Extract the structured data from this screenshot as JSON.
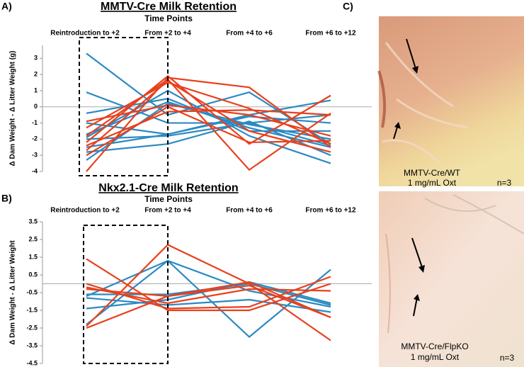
{
  "chart_data": [
    {
      "type": "line",
      "title": "MMTV-Cre Milk Retention",
      "subtitle": "Time Points",
      "categories": [
        "Reintroduction to +2",
        "From +2 to +4",
        "From +4 to +6",
        "From +6 to +12"
      ],
      "y_label": "Δ Dam Weight - Δ Litter Weight (g)",
      "ylim": [
        -4,
        3.8
      ],
      "yticks": [
        -4,
        -3,
        -2,
        -1,
        0,
        1,
        2,
        3
      ],
      "series": [
        {
          "color": "#2a8ac4",
          "values": [
            3.3,
            -0.5,
            0.9,
            -2.3
          ]
        },
        {
          "color": "#2a8ac4",
          "values": [
            0.9,
            -1.0,
            -1.0,
            -0.5
          ]
        },
        {
          "color": "#2a8ac4",
          "values": [
            -0.4,
            0.5,
            -1.5,
            -1.5
          ]
        },
        {
          "color": "#2a8ac4",
          "values": [
            -1.0,
            -1.7,
            -0.5,
            0.4
          ]
        },
        {
          "color": "#2a8ac4",
          "values": [
            -1.7,
            0.3,
            -1.3,
            -2.5
          ]
        },
        {
          "color": "#2a8ac4",
          "values": [
            -1.9,
            1.0,
            -1.8,
            -3.5
          ]
        },
        {
          "color": "#2a8ac4",
          "values": [
            -2.5,
            -1.7,
            -0.6,
            -1.0
          ]
        },
        {
          "color": "#2a8ac4",
          "values": [
            -2.8,
            -2.3,
            -0.9,
            -3.0
          ]
        },
        {
          "color": "#2a8ac4",
          "values": [
            -3.3,
            0.2,
            -1.1,
            -2.0
          ]
        },
        {
          "color": "#2a8ac4",
          "values": [
            -2.0,
            -1.8,
            -1.0,
            -2.4
          ]
        },
        {
          "color": "#e8401c",
          "values": [
            -4.0,
            1.8,
            1.2,
            -2.5
          ]
        },
        {
          "color": "#e8401c",
          "values": [
            -2.2,
            1.9,
            -2.3,
            0.7
          ]
        },
        {
          "color": "#e8401c",
          "values": [
            -1.3,
            1.5,
            -0.1,
            -2.3
          ]
        },
        {
          "color": "#e8401c",
          "values": [
            -2.4,
            -0.3,
            -0.2,
            -0.5
          ]
        },
        {
          "color": "#e8401c",
          "values": [
            -1.8,
            1.7,
            -3.9,
            -0.4
          ]
        },
        {
          "color": "#e8401c",
          "values": [
            -3.0,
            0.0,
            -2.2,
            -2.1
          ]
        },
        {
          "color": "#e8401c",
          "values": [
            -0.9,
            0.1,
            -0.5,
            -1.8
          ]
        },
        {
          "color": "#e8401c",
          "values": [
            -2.7,
            1.6,
            -1.5,
            -2.8
          ]
        }
      ]
    },
    {
      "type": "line",
      "title": "Nkx2.1-Cre Milk Retention",
      "subtitle": "Time Points",
      "categories": [
        "Reintroduction to +2",
        "From +2 to +4",
        "From +4 to +6",
        "From +6 to +12"
      ],
      "y_label": "Δ Dam Weight - Δ Litter Weight",
      "ylim": [
        -4.5,
        3.5
      ],
      "yticks": [
        -4.5,
        -3.5,
        -2.5,
        -1.5,
        -0.5,
        0.5,
        1.5,
        2.5,
        3.5
      ],
      "series": [
        {
          "color": "#2a8ac4",
          "values": [
            -0.7,
            1.3,
            -3.0,
            0.8
          ]
        },
        {
          "color": "#2a8ac4",
          "values": [
            -0.8,
            -1.2,
            -0.9,
            -1.6
          ]
        },
        {
          "color": "#2a8ac4",
          "values": [
            -1.4,
            -0.9,
            0.1,
            -1.1
          ]
        },
        {
          "color": "#2a8ac4",
          "values": [
            -2.3,
            1.3,
            -0.4,
            -1.3
          ]
        },
        {
          "color": "#2a8ac4",
          "values": [
            -0.6,
            -0.6,
            0.0,
            -1.2
          ]
        },
        {
          "color": "#e8401c",
          "values": [
            1.4,
            -1.5,
            -1.5,
            0.0
          ]
        },
        {
          "color": "#e8401c",
          "values": [
            -2.4,
            2.2,
            0.0,
            -3.2
          ]
        },
        {
          "color": "#e8401c",
          "values": [
            -0.2,
            -1.1,
            -0.3,
            -0.4
          ]
        },
        {
          "color": "#e8401c",
          "values": [
            -2.5,
            -0.7,
            -0.1,
            -1.9
          ]
        },
        {
          "color": "#e8401c",
          "values": [
            0.0,
            -1.4,
            -1.3,
            0.4
          ]
        },
        {
          "color": "#e8401c",
          "values": [
            -0.3,
            -0.7,
            0.1,
            -1.9
          ]
        }
      ]
    }
  ],
  "panel_labels": [
    "A)",
    "B)",
    "C)"
  ],
  "photos": [
    {
      "caption": [
        "MMTV-Cre/WT",
        "1 mg/mL Oxt"
      ],
      "n": "n=3"
    },
    {
      "caption": [
        "MMTV-Cre/FlpKO",
        "1 mg/mL Oxt"
      ],
      "n": "n=3"
    }
  ]
}
